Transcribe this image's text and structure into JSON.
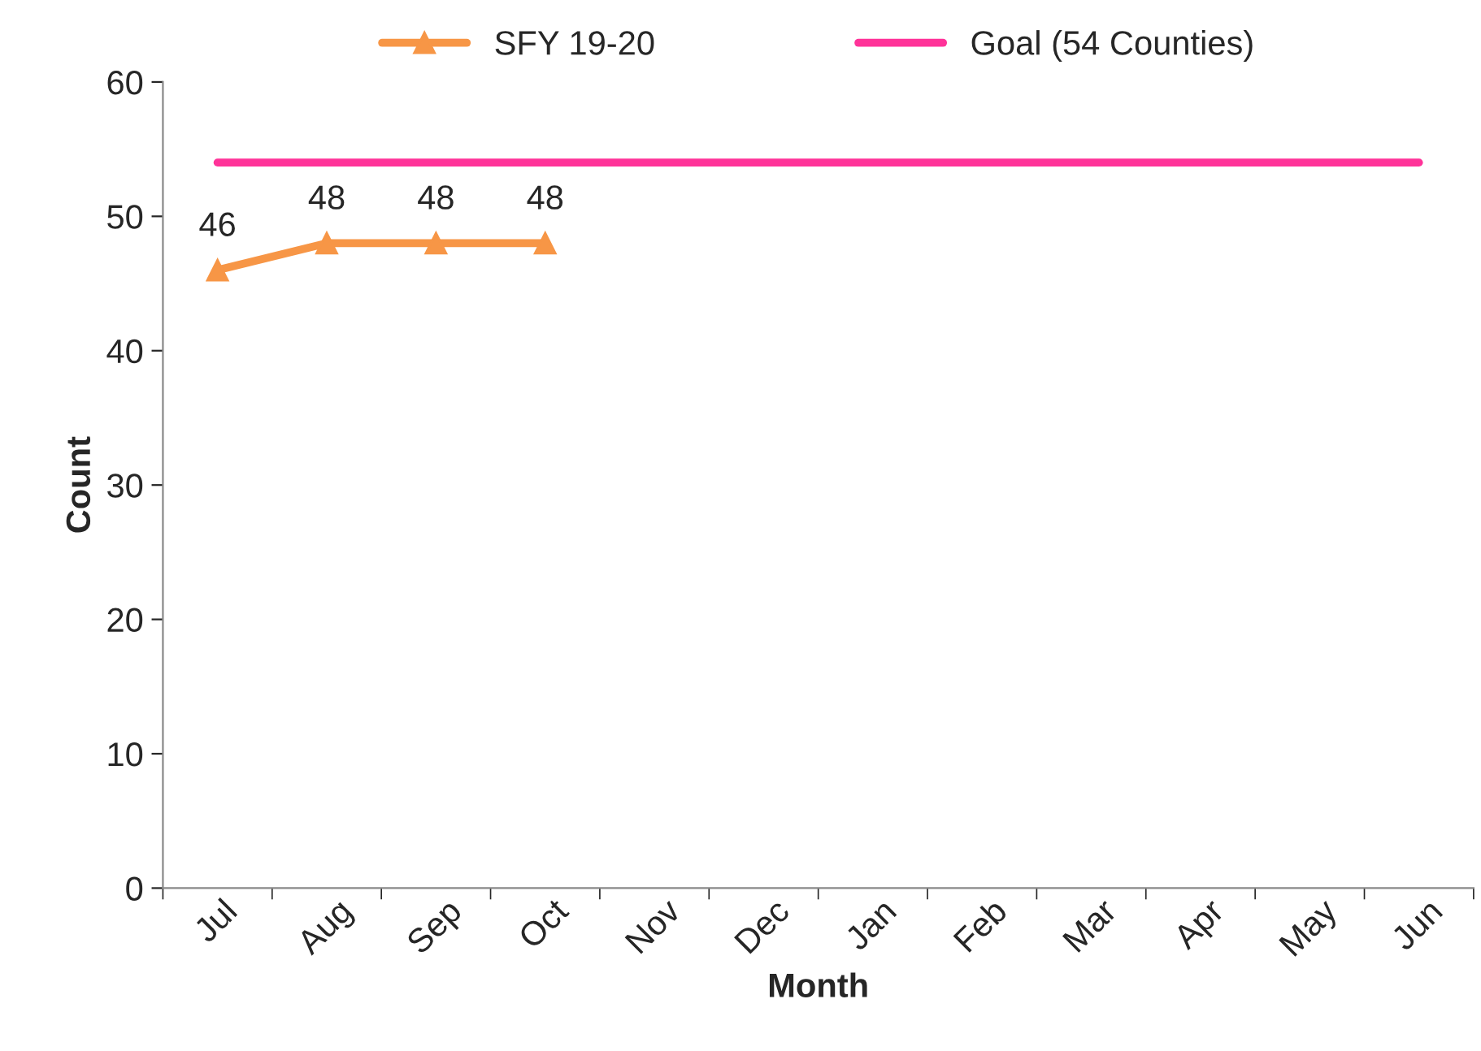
{
  "chart_data": {
    "type": "line",
    "xlabel": "Month",
    "ylabel": "Count",
    "categories": [
      "Jul",
      "Aug",
      "Sep",
      "Oct",
      "Nov",
      "Dec",
      "Jan",
      "Feb",
      "Mar",
      "Apr",
      "May",
      "Jun"
    ],
    "series": [
      {
        "name": "SFY 19-20",
        "color": "#f79646",
        "marker": "triangle",
        "values": [
          46,
          48,
          48,
          48,
          null,
          null,
          null,
          null,
          null,
          null,
          null,
          null
        ],
        "value_labels": [
          "46",
          "48",
          "48",
          "48",
          null,
          null,
          null,
          null,
          null,
          null,
          null,
          null
        ]
      },
      {
        "name": "Goal (54 Counties)",
        "color": "#ff3399",
        "marker": "none",
        "values": [
          54,
          54,
          54,
          54,
          54,
          54,
          54,
          54,
          54,
          54,
          54,
          54
        ]
      }
    ],
    "ylim": [
      0,
      60
    ],
    "yticks": [
      0,
      10,
      20,
      30,
      40,
      50,
      60
    ],
    "grid": false,
    "legend": "top",
    "line_style": "solid"
  }
}
